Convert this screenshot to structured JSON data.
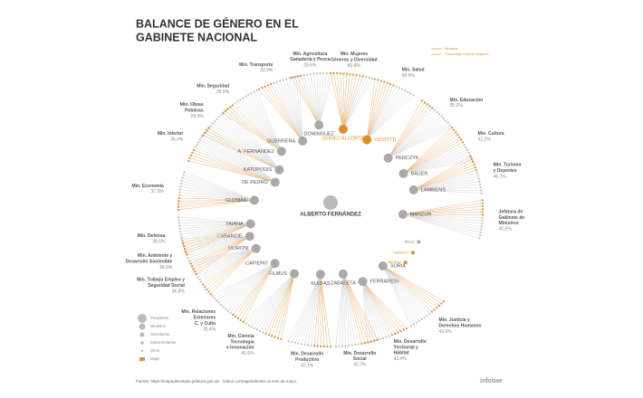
{
  "title": [
    "BALANCE DE GÉNERO EN EL",
    "GABINETE NACIONAL"
  ],
  "president": "ALBERTO FERNÁNDEZ",
  "ministries": [
    {
      "name": [
        "Min. Agricultura",
        "Ganadería y Pesca"
      ],
      "minister": "DOMINGUEZ",
      "percent": 29.6,
      "percent_label": "29.6%",
      "woman": false
    },
    {
      "name": [
        "Min. Mujeres",
        "Géneros y Diversidad"
      ],
      "minister": "GÓMEZ ALCORTA",
      "percent": 80.6,
      "percent_label": "80.6%",
      "woman": true
    },
    {
      "name": [
        "Min. Salud"
      ],
      "minister": "VIZZOTTI",
      "percent": 50.9,
      "percent_label": "50.9%",
      "woman": true
    },
    {
      "name": [
        "Min. Educación"
      ],
      "minister": "PERCZYK",
      "percent": 35.2,
      "percent_label": "35.2%",
      "woman": false
    },
    {
      "name": [
        "Min. Cultura"
      ],
      "minister": "BAUER",
      "percent": 51.2,
      "percent_label": "51.2%",
      "woman": false
    },
    {
      "name": [
        "Min. Turismo",
        "y Deportes"
      ],
      "minister": "LAMMENS",
      "percent": 46.1,
      "percent_label": "46.1%",
      "woman": false
    },
    {
      "name": [
        "Jefatura de",
        "Gabinete de",
        "Ministros"
      ],
      "minister": "MANZUR",
      "percent": 40.5,
      "percent_label": "40.5%",
      "woman": false
    },
    {
      "name": [
        "Min. Justicia y",
        "Derechos Humanos"
      ],
      "minister": "SORIA",
      "percent": 43.6,
      "percent_label": "43.6%",
      "woman": false
    },
    {
      "name": [
        "Min. Desarrollo",
        "Territorial y",
        "Hábitat"
      ],
      "minister": "FERRARESI",
      "percent": 43.4,
      "percent_label": "43.4%",
      "woman": false
    },
    {
      "name": [
        "Min. Desarrollo",
        "Social"
      ],
      "minister": "ZABALETA",
      "percent": 42.7,
      "percent_label": "42.7%",
      "woman": false
    },
    {
      "name": [
        "Min. Desarrollo",
        "Productivo"
      ],
      "minister": "KULFAS",
      "percent": 42.1,
      "percent_label": "42.1%",
      "woman": false
    },
    {
      "name": [
        "Min. Ciencia",
        "Tecnología",
        "e Innovación"
      ],
      "minister": "FILMUS",
      "percent": 41.6,
      "percent_label": "41.6%",
      "woman": false
    },
    {
      "name": [
        "Min. Relaciones",
        "Exteriores",
        "C. y Culto"
      ],
      "minister": "CAFIERO",
      "percent": 35.4,
      "percent_label": "35.4%",
      "woman": false
    },
    {
      "name": [
        "Min. Trabajo Empleo y",
        "Seguridad Social"
      ],
      "minister": "MORONI",
      "percent": 36.8,
      "percent_label": "36.8%",
      "woman": false
    },
    {
      "name": [
        "Min. Ambiente y",
        "Desarrollo Sostenible"
      ],
      "minister": "CABANDIÉ",
      "percent": 36.6,
      "percent_label": "36.6%",
      "woman": false
    },
    {
      "name": [
        "Min. Defensa"
      ],
      "minister": "TAIANA",
      "percent": 38.6,
      "percent_label": "38.6%",
      "woman": false
    },
    {
      "name": [
        "Min. Economía"
      ],
      "minister": "GUZMÁN",
      "percent": 37.3,
      "percent_label": "37.3%",
      "woman": false
    },
    {
      "name": [
        "Min. Interior"
      ],
      "minister": "DE PEDRO",
      "percent": 36.4,
      "percent_label": "36.4%",
      "woman": false
    },
    {
      "name": [
        "Min. Obras",
        "Públicas"
      ],
      "minister": "KATOPODIS",
      "percent": 29.9,
      "percent_label": "29.9%",
      "woman": false
    },
    {
      "name": [
        "Min. Seguridad"
      ],
      "minister": "A. FERNÁNDEZ",
      "percent": 35.0,
      "percent_label": "35.0%",
      "woman": false
    },
    {
      "name": [
        "Min. Transporte"
      ],
      "minister": "GUERRERA",
      "percent": 32.9,
      "percent_label": "32.9%",
      "woman": false
    }
  ],
  "others": [
    {
      "name": "BELIZ",
      "woman": false
    },
    {
      "name": "CERRUTI",
      "woman": true
    },
    {
      "name": "IBARRA",
      "woman": true
    }
  ],
  "legend": [
    "Presidente",
    "Ministros",
    "Secretarios",
    "Subsecretarios",
    "Otros",
    "Mujer"
  ],
  "key": [
    "Ministra",
    "Porcentaje total de mujeres"
  ],
  "source": "Fuente: https://mapadelestado.jefatura.gob.ar/ - Datos correspondientes al mes de mayo.",
  "logo": "infobae"
}
